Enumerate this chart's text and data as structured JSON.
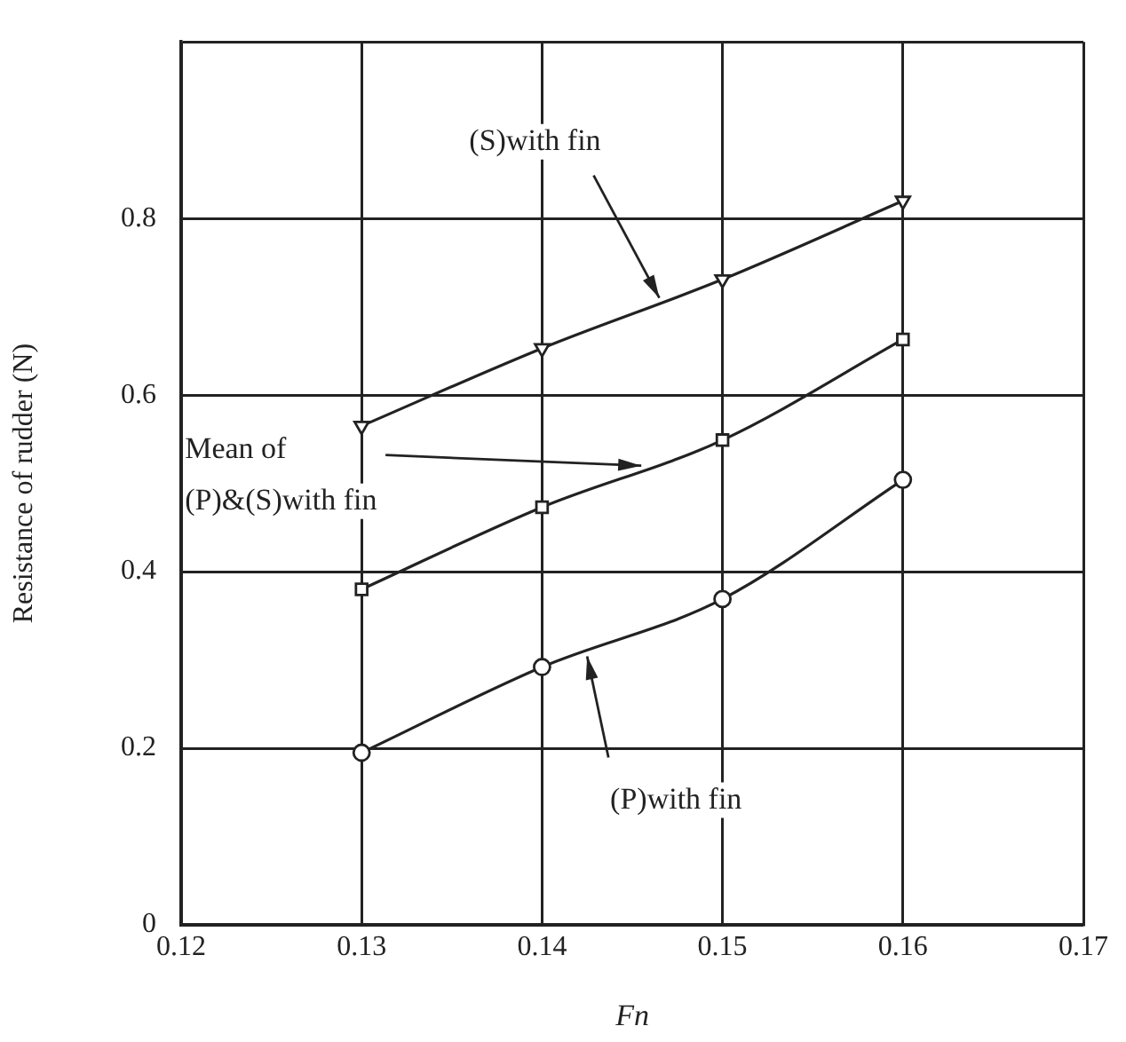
{
  "chart_data": {
    "type": "line",
    "xlabel": "Fn",
    "ylabel": "Resistance of rudder (N)",
    "x": [
      0.13,
      0.14,
      0.15,
      0.16
    ],
    "series": [
      {
        "color": "#222222",
        "marker": "triangle",
        "values": [
          0.565,
          0.653,
          0.731,
          0.82
        ]
      },
      {
        "color": "#222222",
        "marker": "square",
        "values": [
          0.38,
          0.473,
          0.549,
          0.663
        ]
      },
      {
        "color": "#222222",
        "marker": "circle",
        "values": [
          0.195,
          0.292,
          0.369,
          0.504
        ]
      }
    ],
    "xlim": [
      0.12,
      0.17
    ],
    "xticks": [
      0.12,
      0.13,
      0.14,
      0.15,
      0.16,
      0.17
    ],
    "ylim": [
      0,
      1
    ],
    "yticks": [
      0,
      0.2,
      0.4,
      0.6,
      0.8,
      {
        "value": 1,
        "label": null
      }
    ],
    "grid": true,
    "legend": false,
    "annotations": [
      {
        "text": "(S)with fin",
        "x": 0.1465,
        "y": 0.71
      },
      {
        "text": "Mean of\n(P)&(S)with fin",
        "x": 0.1455,
        "y": 0.52
      },
      {
        "text": "(P)with fin",
        "x": 0.1425,
        "y": 0.304
      }
    ]
  }
}
